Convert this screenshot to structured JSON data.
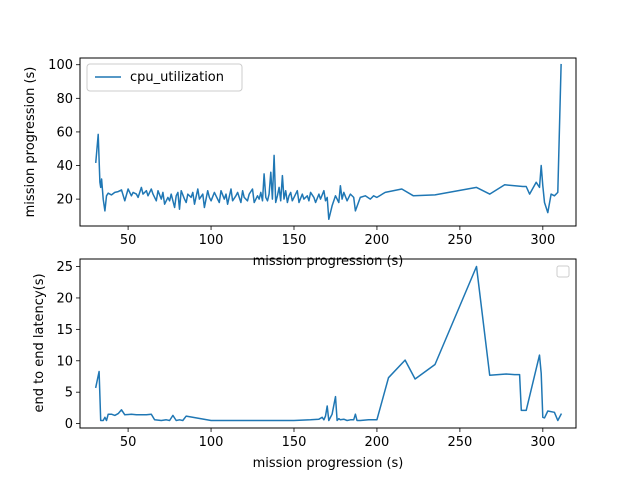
{
  "colors": {
    "line": "#1f77b4",
    "axes": "#000000",
    "legend_border": "#cccccc"
  },
  "chart_data": [
    {
      "type": "line",
      "title": "",
      "xlabel": "mission  progression (s)",
      "ylabel": "mission progression (s)",
      "xlim": [
        21,
        320
      ],
      "ylim": [
        4,
        104
      ],
      "xticks": [
        50,
        100,
        150,
        200,
        250,
        300
      ],
      "yticks": [
        20,
        40,
        60,
        80,
        100
      ],
      "legend": {
        "placement": "top-left",
        "entries": [
          "cpu_utilization"
        ]
      },
      "grid": false,
      "series": [
        {
          "name": "cpu_utilization",
          "x": [
            30.5,
            32,
            33,
            33.5,
            34,
            35,
            36,
            37,
            38,
            40,
            42,
            44,
            46,
            48,
            50,
            52,
            53,
            55,
            56,
            58,
            59,
            61,
            62,
            64,
            65,
            67,
            68,
            70,
            71,
            72,
            74,
            75,
            76,
            78,
            79,
            80,
            81,
            82,
            84,
            85,
            86,
            88,
            89,
            90,
            92,
            93,
            95,
            96,
            98,
            99,
            100,
            102,
            103,
            105,
            106,
            108,
            109,
            110,
            112,
            113,
            115,
            116,
            118,
            119,
            120,
            122,
            123,
            125,
            126,
            128,
            129,
            130,
            131,
            132,
            133,
            134,
            135,
            136,
            137,
            138,
            139,
            140,
            141,
            142,
            143,
            144,
            145,
            146,
            147,
            148,
            149,
            150,
            152,
            153,
            155,
            156,
            158,
            159,
            160,
            162,
            163,
            165,
            166,
            168,
            169,
            170,
            171,
            173,
            175,
            177,
            178,
            179,
            180,
            182,
            184,
            186,
            187,
            190,
            193,
            196,
            198,
            200,
            205,
            215,
            222,
            235,
            260,
            268,
            277,
            288,
            290,
            292,
            296,
            298,
            299,
            300,
            301,
            303,
            305,
            307,
            309,
            311
          ],
          "y": [
            42,
            58.5,
            30,
            27,
            32,
            20,
            13,
            22,
            23.5,
            22.5,
            24,
            24.5,
            25.5,
            19,
            26,
            22,
            24,
            23,
            21,
            27,
            23,
            25,
            22,
            26,
            23,
            19,
            25,
            20,
            24,
            17,
            21,
            19,
            23,
            15,
            22,
            24,
            14,
            25,
            20,
            18,
            23,
            21,
            24,
            17,
            26,
            20,
            23,
            15,
            25,
            21,
            19,
            24,
            22,
            18,
            25,
            20,
            23,
            17,
            26,
            19,
            22,
            24,
            18,
            25,
            21,
            19,
            23,
            26,
            18,
            22,
            20,
            24,
            19,
            35,
            21,
            19,
            23,
            36,
            20,
            46,
            18,
            22,
            27,
            19,
            34,
            20,
            25,
            18,
            22,
            24,
            19,
            21,
            25,
            18,
            23,
            20,
            22,
            19,
            24,
            21,
            18,
            23,
            20,
            25,
            19,
            21,
            8,
            16,
            22,
            18,
            28,
            20,
            24,
            19,
            23,
            21,
            13,
            21,
            22,
            20,
            22,
            21,
            24,
            26,
            22,
            22.5,
            27,
            23,
            28.5,
            27.5,
            27.5,
            23,
            30,
            27,
            40,
            28,
            18,
            12,
            23,
            22,
            24,
            100
          ]
        }
      ]
    },
    {
      "type": "line",
      "title": "",
      "xlabel": "mission  progression (s)",
      "ylabel": "end to end latency(s)",
      "xlim": [
        21,
        320
      ],
      "ylim": [
        -0.7,
        26.2
      ],
      "xticks": [
        50,
        100,
        150,
        200,
        250,
        300
      ],
      "yticks": [
        0,
        5,
        10,
        15,
        20,
        25
      ],
      "legend": {
        "placement": "top-right",
        "entries": []
      },
      "grid": false,
      "series": [
        {
          "x": [
            30.5,
            32.5,
            33.5,
            35,
            36,
            37,
            38,
            40,
            42,
            44,
            46,
            48,
            52,
            55,
            58,
            61,
            64,
            66,
            70,
            73,
            75,
            77,
            79,
            81,
            83,
            85,
            100,
            120,
            140,
            150,
            160,
            165,
            167,
            168,
            169,
            170,
            171,
            173,
            175,
            176,
            177,
            178,
            180,
            182,
            184,
            186,
            187,
            188,
            190,
            195,
            200,
            207,
            217,
            223,
            235,
            260,
            268,
            278,
            283,
            286,
            287,
            290,
            298,
            299,
            300,
            301,
            303,
            307,
            309,
            311
          ],
          "y": [
            5.8,
            8.3,
            0.5,
            0.5,
            1,
            0.5,
            1.5,
            1.5,
            1.3,
            1.6,
            2.2,
            1.4,
            1.5,
            1.4,
            1.4,
            1.4,
            1.5,
            0.6,
            0.5,
            0.6,
            0.5,
            1.3,
            0.5,
            0.6,
            0.5,
            1.2,
            0.5,
            0.5,
            0.5,
            0.5,
            0.6,
            0.7,
            1,
            0.6,
            1.2,
            2.8,
            0.5,
            1.5,
            4.3,
            0.5,
            0.8,
            0.6,
            0.7,
            0.5,
            0.6,
            0.6,
            1.5,
            0.5,
            0.5,
            0.6,
            0.6,
            7.3,
            10.1,
            7.1,
            9.4,
            25,
            7.7,
            7.9,
            7.8,
            7.8,
            2.1,
            2.1,
            10.9,
            8,
            1,
            0.9,
            2,
            1.8,
            0.5,
            1.5
          ]
        }
      ]
    }
  ]
}
